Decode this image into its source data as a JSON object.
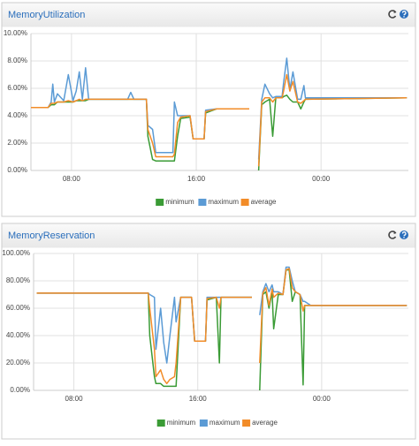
{
  "chart_data": [
    {
      "type": "line",
      "title": "MemoryUtilization",
      "x": [
        5.4,
        6.5,
        6.7,
        6.8,
        6.9,
        7.1,
        7.5,
        7.8,
        8.1,
        8.3,
        8.5,
        8.7,
        8.9,
        9.1,
        11.6,
        11.8,
        12.0,
        12.8,
        12.9,
        13.2,
        13.4,
        14.5,
        14.6,
        14.8,
        15.0,
        15.6,
        15.8,
        16.5,
        16.6,
        17.3,
        19.4,
        19.7,
        20.0,
        20.2,
        20.4,
        20.7,
        20.9,
        21.1,
        21.5,
        21.6,
        21.8,
        22.0,
        22.2,
        22.5,
        22.7,
        22.9,
        23.0,
        29.5
      ],
      "series": [
        {
          "name": "minimum",
          "color": "#3a9b35",
          "values": [
            4.6,
            4.6,
            4.8,
            4.8,
            4.8,
            5.0,
            5.0,
            5.0,
            5.0,
            5.1,
            5.1,
            5.1,
            5.1,
            5.2,
            5.2,
            5.2,
            5.2,
            5.2,
            2.5,
            0.8,
            0.7,
            0.7,
            0.7,
            2.5,
            3.8,
            3.9,
            2.3,
            2.3,
            4.2,
            4.5,
            4.5,
            null,
            0,
            4.8,
            5.0,
            5.2,
            2.5,
            5.3,
            5.3,
            5.4,
            5.5,
            5.2,
            5.0,
            5.0,
            4.5,
            5.0,
            5.2,
            5.3
          ]
        },
        {
          "name": "maximum",
          "color": "#5b9bd5",
          "values": [
            4.6,
            4.6,
            5.0,
            6.3,
            5.0,
            5.6,
            5.1,
            7.0,
            5.1,
            5.8,
            7.2,
            5.2,
            7.5,
            5.2,
            5.2,
            5.7,
            5.2,
            5.2,
            3.3,
            3.0,
            1.3,
            1.3,
            5.0,
            4.0,
            4.0,
            4.0,
            2.3,
            2.3,
            4.4,
            4.5,
            4.5,
            null,
            0.8,
            5.2,
            6.3,
            5.6,
            5.3,
            5.4,
            5.4,
            6.4,
            8.2,
            5.9,
            7.2,
            5.2,
            5.2,
            6.2,
            5.3,
            5.3
          ]
        },
        {
          "name": "average",
          "color": "#f28c28",
          "values": [
            4.6,
            4.6,
            4.9,
            4.9,
            4.9,
            5.0,
            5.0,
            5.1,
            5.0,
            5.1,
            5.2,
            5.1,
            5.2,
            5.2,
            5.2,
            5.2,
            5.2,
            5.2,
            3.0,
            2.0,
            1.0,
            1.0,
            1.2,
            3.5,
            3.9,
            4.0,
            2.3,
            2.3,
            4.3,
            4.5,
            4.5,
            null,
            0.3,
            5.0,
            5.3,
            5.3,
            5.0,
            5.3,
            5.3,
            5.8,
            7.0,
            5.8,
            6.5,
            5.0,
            4.9,
            5.1,
            5.2,
            5.3
          ]
        }
      ],
      "xlim": [
        5.4,
        29.6
      ],
      "xticks": [
        {
          "value": 8,
          "label": "08:00"
        },
        {
          "value": 16,
          "label": "16:00"
        },
        {
          "value": 24,
          "label": "00:00"
        }
      ],
      "ylim": [
        0,
        10
      ],
      "yticks": [
        {
          "value": 0,
          "label": "0.00%"
        },
        {
          "value": 2,
          "label": "2.00%"
        },
        {
          "value": 4,
          "label": "4.00%"
        },
        {
          "value": 6,
          "label": "6.00%"
        },
        {
          "value": 8,
          "label": "8.00%"
        },
        {
          "value": 10,
          "label": "10.00%"
        }
      ],
      "grid": true,
      "legend": "bottom"
    },
    {
      "type": "line",
      "title": "MemoryReservation",
      "x": [
        5.6,
        12.8,
        12.9,
        13.2,
        13.3,
        13.6,
        13.8,
        14.0,
        14.2,
        14.5,
        14.6,
        14.9,
        15.6,
        15.8,
        16.5,
        16.6,
        17.2,
        17.4,
        17.5,
        19.5,
        19.7,
        20.0,
        20.2,
        20.4,
        20.6,
        20.8,
        20.9,
        21.2,
        21.5,
        21.7,
        21.9,
        22.1,
        22.3,
        22.6,
        22.8,
        22.9,
        23.3,
        29.5
      ],
      "series": [
        {
          "name": "minimum",
          "color": "#3a9b35",
          "values": [
            71,
            71,
            40,
            10,
            5,
            5,
            3,
            3,
            3,
            3,
            3,
            68,
            68,
            36,
            36,
            66,
            68,
            20,
            68,
            68,
            null,
            0,
            70,
            72,
            60,
            72,
            45,
            70,
            70,
            88,
            88,
            65,
            72,
            70,
            4,
            62,
            62,
            62
          ]
        },
        {
          "name": "maximum",
          "color": "#5b9bd5",
          "values": [
            71,
            71,
            70,
            68,
            30,
            60,
            35,
            20,
            40,
            68,
            50,
            68,
            68,
            36,
            36,
            68,
            68,
            68,
            68,
            68,
            null,
            55,
            72,
            78,
            72,
            77,
            72,
            72,
            70,
            90,
            90,
            80,
            72,
            70,
            65,
            65,
            62,
            62
          ]
        },
        {
          "name": "average",
          "color": "#f28c28",
          "values": [
            71,
            71,
            60,
            30,
            10,
            15,
            8,
            5,
            8,
            10,
            20,
            68,
            68,
            36,
            36,
            67,
            68,
            60,
            68,
            68,
            null,
            20,
            71,
            75,
            62,
            74,
            68,
            71,
            70,
            88,
            89,
            75,
            72,
            70,
            58,
            62,
            62,
            62
          ]
        }
      ],
      "xlim": [
        5.4,
        29.6
      ],
      "xticks": [
        {
          "value": 8,
          "label": "08:00"
        },
        {
          "value": 16,
          "label": "16:00"
        },
        {
          "value": 24,
          "label": "00:00"
        }
      ],
      "ylim": [
        0,
        100
      ],
      "yticks": [
        {
          "value": 0,
          "label": "0.00%"
        },
        {
          "value": 20,
          "label": "20.00%"
        },
        {
          "value": 40,
          "label": "40.00%"
        },
        {
          "value": 60,
          "label": "60.00%"
        },
        {
          "value": 80,
          "label": "80.00%"
        },
        {
          "value": 100,
          "label": "100.00%"
        }
      ],
      "grid": true,
      "legend": "bottom"
    }
  ]
}
